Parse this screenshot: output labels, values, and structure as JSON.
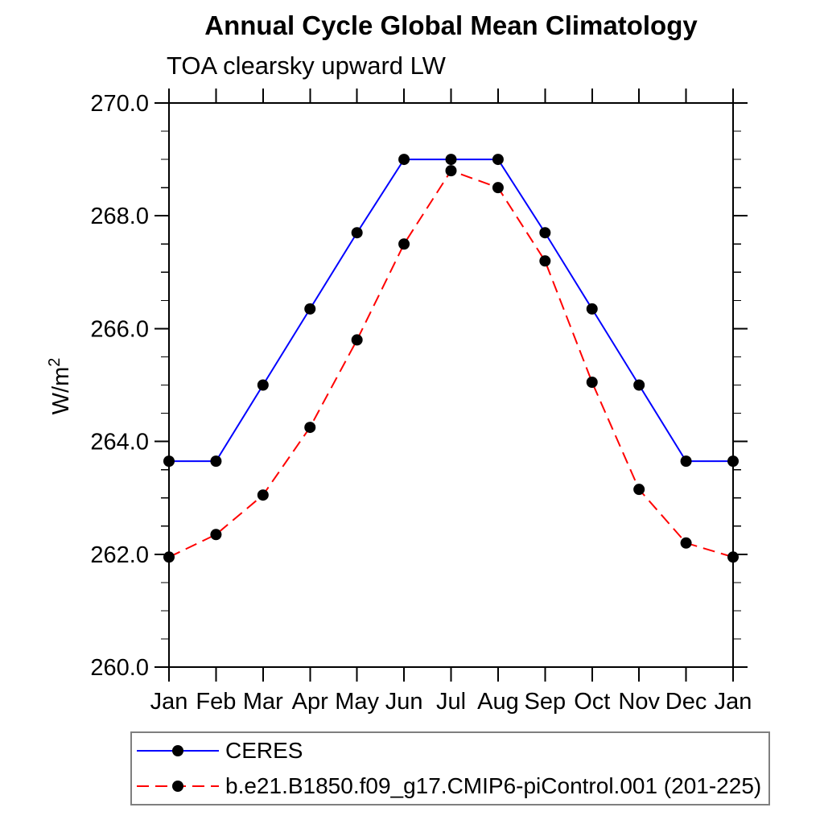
{
  "chart_data": {
    "type": "line",
    "title": "Annual Cycle Global Mean Climatology",
    "subtitle": "TOA clearsky upward LW",
    "ylabel": "W/m²",
    "ylabel_base": "W/m",
    "ylabel_exponent": "2",
    "xlabel": "",
    "x_categories": [
      "Jan",
      "Feb",
      "Mar",
      "Apr",
      "May",
      "Jun",
      "Jul",
      "Aug",
      "Sep",
      "Oct",
      "Nov",
      "Dec",
      "Jan"
    ],
    "ylim": [
      260.0,
      270.0
    ],
    "ytick_major_interval": 2.0,
    "ytick_minor_interval": 0.5,
    "ytick_labels": [
      "260.0",
      "262.0",
      "264.0",
      "266.0",
      "268.0",
      "270.0"
    ],
    "grid": false,
    "legend_position": "bottom-left",
    "series": [
      {
        "name": "CERES",
        "color": "#0000ff",
        "line_style": "solid",
        "marker": "filled-circle",
        "marker_color": "#000000",
        "values": [
          263.65,
          263.65,
          265.0,
          266.35,
          267.7,
          269.0,
          269.0,
          269.0,
          267.7,
          266.35,
          265.0,
          263.65,
          263.65
        ]
      },
      {
        "name": "b.e21.B1850.f09_g17.CMIP6-piControl.001 (201-225)",
        "color": "#ff0000",
        "line_style": "dashed",
        "marker": "filled-circle",
        "marker_color": "#000000",
        "values": [
          261.95,
          262.35,
          263.05,
          264.25,
          265.8,
          267.5,
          268.8,
          268.5,
          267.2,
          265.05,
          263.15,
          262.2,
          261.95
        ]
      }
    ]
  },
  "colors": {
    "axis": "#000000",
    "text": "#000000",
    "background": "#ffffff",
    "legend_border": "#7f7f7f"
  }
}
